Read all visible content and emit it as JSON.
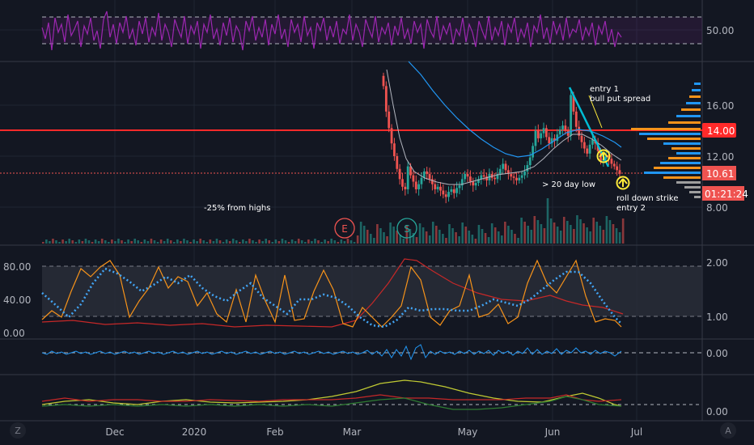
{
  "theme": {
    "background": "#131722",
    "grid": "#1f2533",
    "separator": "#363a45",
    "axis_text": "#b2b5be",
    "candle_up": "#26a69a",
    "candle_down": "#ef5350",
    "rsi": "#9c27b0",
    "resistance": "#ff2a2a",
    "ema_fast": "#b2b5be",
    "ema_slow": "#2196f3",
    "orange": "#f7931a",
    "annotation": "#ffeb3b",
    "cyan": "#00bcd4"
  },
  "panes": {
    "rsi_label": "50.00",
    "price_labels": [
      "16.00",
      "12.00",
      "8.00"
    ],
    "osc_left_labels": [
      "80.00",
      "40.00",
      "0.00"
    ],
    "osc_right_labels": [
      "2.00",
      "1.00"
    ],
    "mom_label": "0.00",
    "bottom_label": "0.00"
  },
  "price_tags": {
    "resistance": "14.00",
    "last": "10.61",
    "countdown": "01:21:24"
  },
  "annotations": {
    "entry1_line1": "entry 1",
    "entry1_line2": "bull put spread",
    "twenty_day_low": "> 20 day low",
    "roll_line1": "roll down strike",
    "roll_line2": "entry 2",
    "from_highs": "-25% from highs",
    "earnings_marker": "E",
    "split_marker": "S"
  },
  "time_axis": [
    "Dec",
    "2020",
    "Feb",
    "Mar",
    "May",
    "Jun",
    "Jul"
  ],
  "corner_left": "Z",
  "corner_right": "A",
  "chart_data": {
    "type": "candlestick",
    "price_range": [
      6.5,
      18.5
    ],
    "resistance_level": 14.0,
    "last_price": 10.61,
    "closes": [
      17.5,
      15.5,
      14.2,
      13.0,
      12.0,
      11.0,
      10.2,
      9.6,
      9.4,
      11.2,
      10.5,
      10.0,
      9.4,
      9.8,
      10.3,
      10.8,
      10.6,
      10.2,
      9.8,
      9.4,
      9.6,
      9.3,
      9.0,
      8.8,
      9.2,
      9.4,
      9.1,
      9.5,
      9.7,
      10.2,
      10.6,
      10.4,
      10.0,
      9.7,
      9.9,
      10.2,
      10.5,
      10.4,
      10.1,
      10.6,
      10.3,
      10.2,
      10.6,
      11.0,
      11.4,
      10.9,
      10.6,
      10.4,
      10.3,
      10.1,
      10.3,
      10.5,
      10.8,
      11.3,
      11.9,
      12.8,
      14.0,
      13.4,
      13.8,
      14.2,
      13.5,
      13.0,
      13.4,
      13.2,
      13.7,
      14.1,
      14.4,
      14.0,
      13.6,
      16.8,
      15.5,
      14.3,
      13.6,
      13.1,
      12.6,
      12.2,
      12.9,
      13.3,
      13.0,
      12.4,
      11.6,
      11.8,
      12.1,
      11.8,
      11.4,
      11.2,
      10.9,
      10.61
    ],
    "rsi_level": 50.0
  }
}
